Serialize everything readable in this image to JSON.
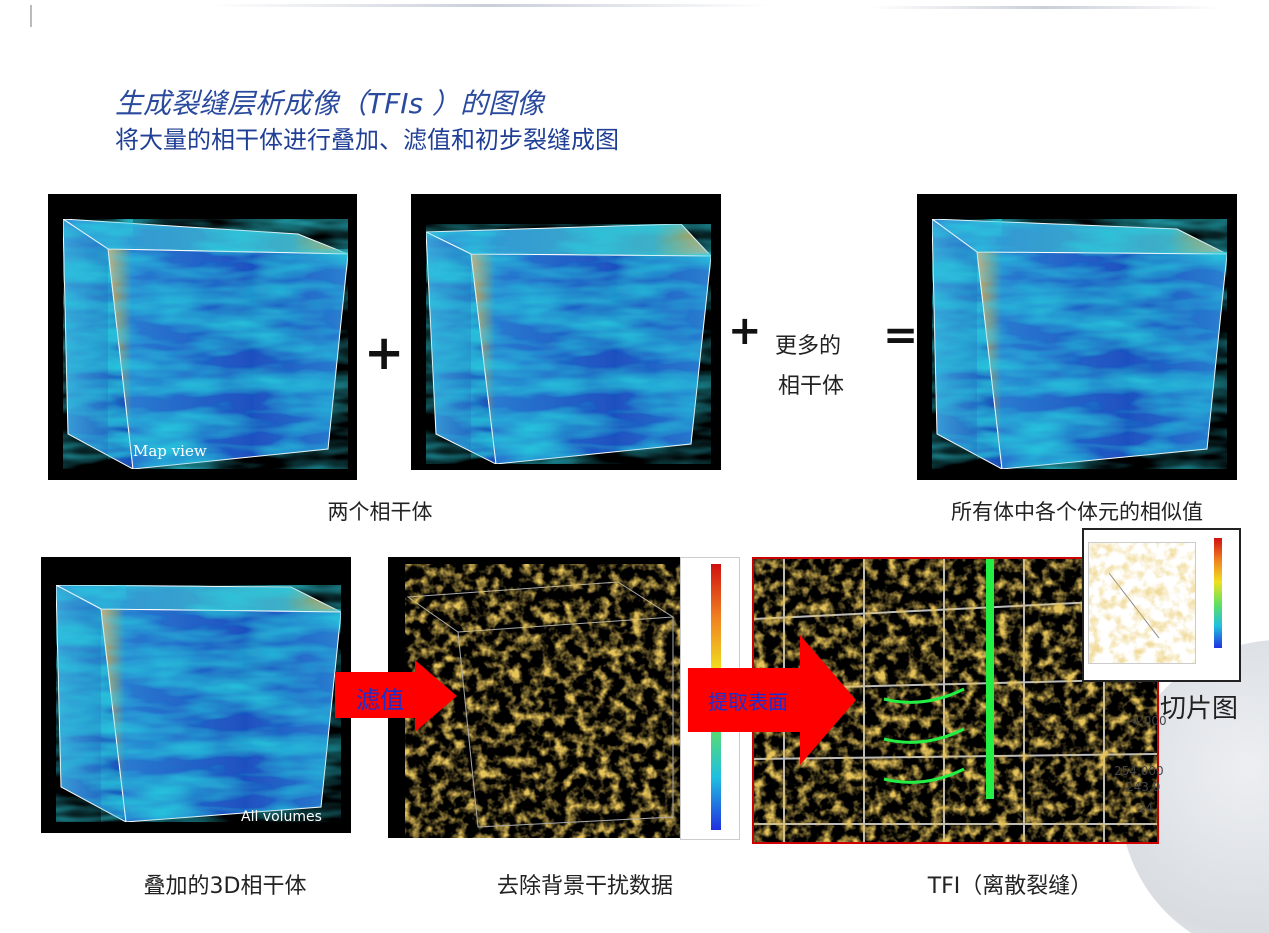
{
  "title": "生成裂缝层析成像（TFIs ）的图像",
  "subtitle": "将大量的相干体进行叠加、滤值和初步裂缝成图",
  "top_row": {
    "panel1_label": "Map view",
    "plus1": "+",
    "plus2": "+",
    "more_line1": "更多的",
    "more_line2": "相干体",
    "equals": "=",
    "caption_left": "两个相干体",
    "caption_right": "所有体中各个体元的相似值"
  },
  "bottom_row": {
    "panel1_label": "All volumes",
    "arrow1_label": "滤值",
    "arrow2_label": "提取表面",
    "slice_label": "切片图",
    "axis_labels": [
      "-4,000",
      "254,000",
      "243,0",
      "24"
    ],
    "caption1": "叠加的3D相干体",
    "caption2": "去除背景干扰数据",
    "caption3": "TFI（离散裂缝）"
  },
  "colors": {
    "title": "#2a4a9e",
    "arrow": "#ff0000",
    "arrow_text": "#1a2fd0",
    "fracture": "#c8901c",
    "well": "#22ee44"
  }
}
